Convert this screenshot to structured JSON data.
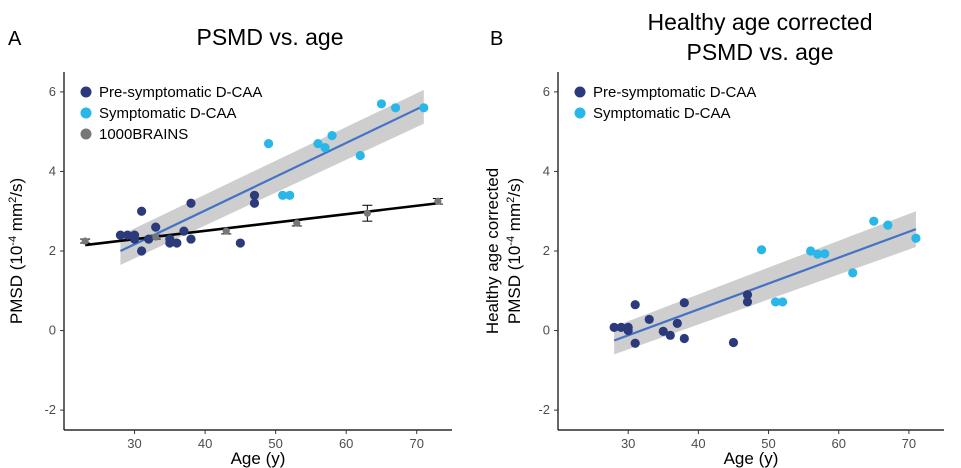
{
  "chart_data": [
    {
      "panel": "A",
      "type": "scatter",
      "title": "PSMD vs. age",
      "xlabel": "Age (y)",
      "ylabel": "PMSD (10-4 mm2/s)",
      "ylabel_parts": {
        "main": "PMSD (10",
        "sup1": "-4",
        "mid": " mm",
        "sup2": "2",
        "end": "/s)"
      },
      "xlim": [
        20,
        75
      ],
      "ylim": [
        -2.5,
        6.5
      ],
      "xticks": [
        30,
        40,
        50,
        60,
        70
      ],
      "yticks": [
        -2,
        0,
        2,
        4,
        6
      ],
      "grid": false,
      "legend_position": "top-left",
      "series": [
        {
          "name": "Pre-symptomatic D-CAA",
          "color": "#2b3a7a",
          "x": [
            28,
            29,
            30,
            30,
            31,
            31,
            32,
            33,
            35,
            35,
            36,
            37,
            38,
            38,
            47,
            47,
            45
          ],
          "y": [
            2.4,
            2.4,
            2.4,
            2.3,
            3.0,
            2.0,
            2.3,
            2.6,
            2.3,
            2.2,
            2.2,
            2.5,
            3.2,
            2.3,
            3.4,
            3.2,
            2.2
          ]
        },
        {
          "name": "Symptomatic D-CAA",
          "color": "#29b6e8",
          "x": [
            49,
            51,
            52,
            56,
            57,
            58,
            62,
            65,
            67,
            71
          ],
          "y": [
            4.7,
            3.4,
            3.4,
            4.7,
            4.6,
            4.9,
            4.4,
            5.7,
            5.6,
            5.6
          ]
        },
        {
          "name": "1000BRAINS",
          "color": "#777777",
          "x": [
            23,
            33,
            43,
            53,
            63,
            73
          ],
          "y": [
            2.25,
            2.35,
            2.5,
            2.7,
            2.95,
            3.25
          ],
          "error": [
            0.05,
            0.05,
            0.07,
            0.07,
            0.2,
            0.07
          ]
        }
      ],
      "fits": [
        {
          "series": "Pre-symptomatic + Symptomatic D-CAA",
          "color": "#4472c4",
          "x": [
            28,
            71
          ],
          "y": [
            2.0,
            5.65
          ],
          "band_lower": [
            1.65,
            5.2
          ],
          "band_upper": [
            2.4,
            6.05
          ]
        },
        {
          "series": "1000BRAINS",
          "color": "#000000",
          "x": [
            23,
            73
          ],
          "y": [
            2.15,
            3.2
          ]
        }
      ]
    },
    {
      "panel": "B",
      "type": "scatter",
      "title": "Healthy age corrected PSMD vs. age",
      "title_lines": [
        "Healthy age corrected",
        "PSMD vs. age"
      ],
      "xlabel": "Age (y)",
      "ylabel": "Healthy age corrected PMSD (10-4 mm2/s)",
      "ylabel_line1": "Healthy age corrected",
      "ylabel_parts": {
        "main": "PMSD (10",
        "sup1": "-4",
        "mid": " mm",
        "sup2": "2",
        "end": "/s)"
      },
      "xlim": [
        20,
        75
      ],
      "ylim": [
        -2.5,
        6.5
      ],
      "xticks": [
        30,
        40,
        50,
        60,
        70
      ],
      "yticks": [
        -2,
        0,
        2,
        4,
        6
      ],
      "grid": false,
      "legend_position": "top-left",
      "series": [
        {
          "name": "Pre-symptomatic D-CAA",
          "color": "#2b3a7a",
          "x": [
            28,
            29,
            30,
            30,
            31,
            31,
            33,
            35,
            36,
            37,
            38,
            38,
            45,
            47,
            47
          ],
          "y": [
            0.08,
            0.08,
            0.08,
            0.0,
            0.65,
            -0.32,
            0.28,
            -0.02,
            -0.12,
            0.18,
            0.7,
            -0.2,
            -0.3,
            0.9,
            0.72
          ]
        },
        {
          "name": "Symptomatic D-CAA",
          "color": "#29b6e8",
          "x": [
            49,
            51,
            52,
            56,
            57,
            58,
            62,
            65,
            67,
            71
          ],
          "y": [
            2.03,
            0.72,
            0.72,
            2.0,
            1.92,
            1.93,
            1.45,
            2.75,
            2.65,
            2.32
          ]
        }
      ],
      "fits": [
        {
          "series": "Pre-symptomatic + Symptomatic D-CAA",
          "color": "#4472c4",
          "x": [
            28,
            71
          ],
          "y": [
            -0.25,
            2.55
          ],
          "band_lower": [
            -0.6,
            2.1
          ],
          "band_upper": [
            0.1,
            3.0
          ]
        }
      ]
    }
  ]
}
